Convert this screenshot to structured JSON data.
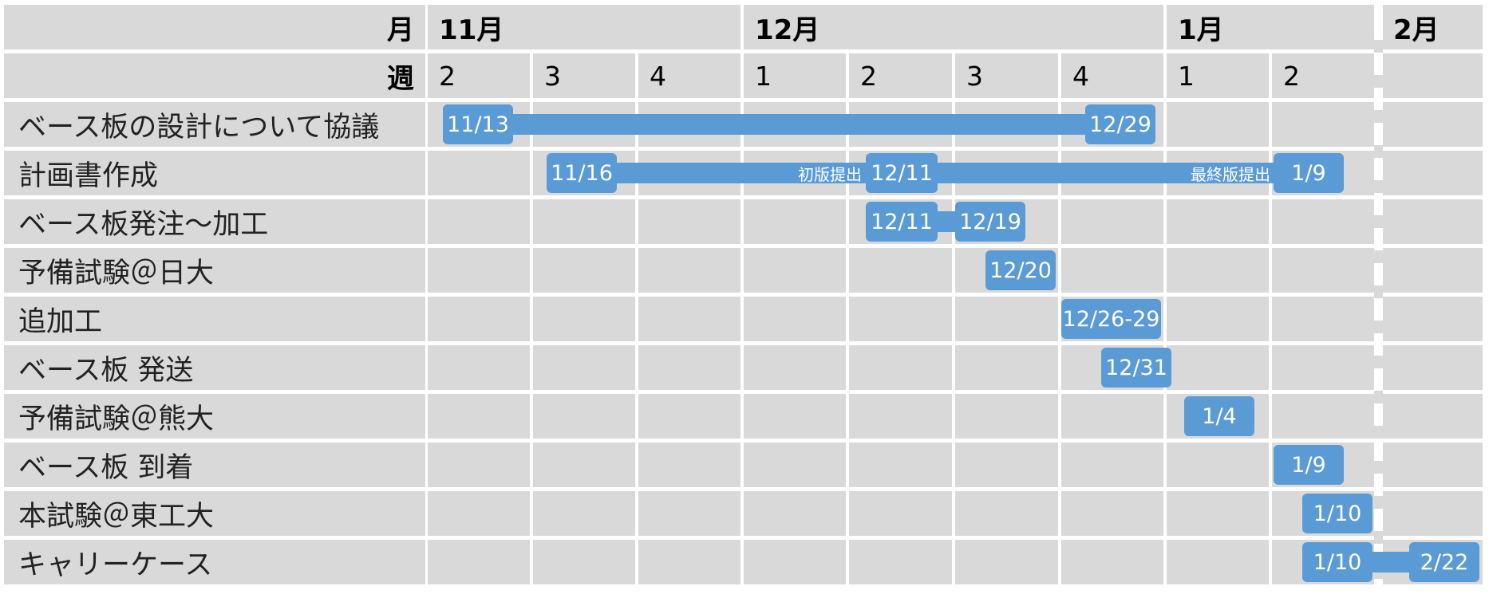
{
  "chart_data": {
    "type": "gantt",
    "header_labels": {
      "month": "月",
      "week": "週"
    },
    "months": [
      {
        "label": "11月",
        "weeks": [
          "2",
          "3",
          "4"
        ]
      },
      {
        "label": "12月",
        "weeks": [
          "1",
          "2",
          "3",
          "4"
        ]
      },
      {
        "label": "1月",
        "weeks": [
          "1",
          "2"
        ]
      },
      {
        "label": "2月",
        "weeks": [
          ""
        ]
      }
    ],
    "tasks": [
      {
        "name": "ベース板の設計について協議",
        "start_label": "11/13",
        "end_label": "12/29"
      },
      {
        "name": "計画書作成",
        "start_label": "11/16",
        "mid_label": "12/11",
        "end_label": "1/9",
        "notes": [
          "初版提出",
          "最終版提出"
        ]
      },
      {
        "name": "ベース板発注～加工",
        "start_label": "12/11",
        "end_label": "12/19"
      },
      {
        "name": "予備試験＠日大",
        "label": "12/20"
      },
      {
        "name": "追加工",
        "label": "12/26-29"
      },
      {
        "name": "ベース板 発送",
        "label": "12/31"
      },
      {
        "name": "予備試験＠熊大",
        "label": "1/4"
      },
      {
        "name": "ベース板 到着",
        "label": "1/9"
      },
      {
        "name": "本試験＠東工大",
        "label": "1/10"
      },
      {
        "name": "キャリーケース",
        "start_label": "1/10",
        "end_label": "2/22"
      }
    ],
    "colors": {
      "bar": "#5b9bd5",
      "cell": "#d9d9d9",
      "grid": "#ffffff",
      "text": "#000000"
    }
  }
}
